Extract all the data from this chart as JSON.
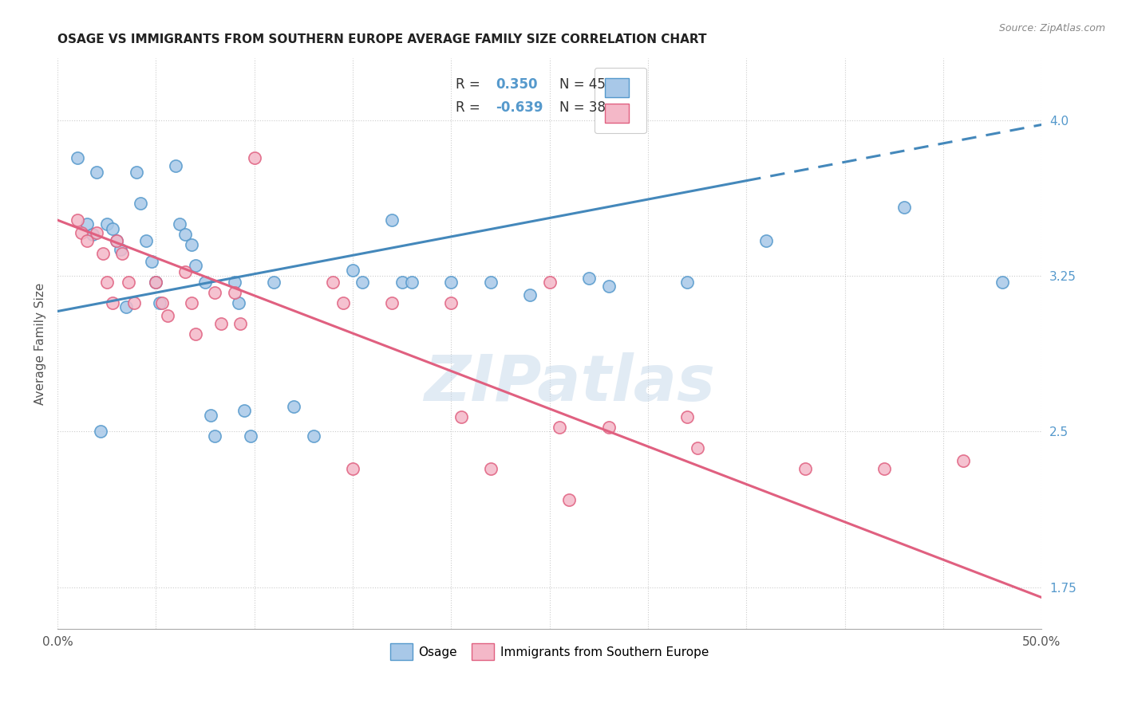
{
  "title": "OSAGE VS IMMIGRANTS FROM SOUTHERN EUROPE AVERAGE FAMILY SIZE CORRELATION CHART",
  "source": "Source: ZipAtlas.com",
  "ylabel": "Average Family Size",
  "right_yticks": [
    1.75,
    2.5,
    3.25,
    4.0
  ],
  "legend_blue_r": "0.350",
  "legend_blue_n": "45",
  "legend_pink_r": "-0.639",
  "legend_pink_n": "38",
  "legend_label_blue": "Osage",
  "legend_label_pink": "Immigrants from Southern Europe",
  "blue_color": "#a8c8e8",
  "pink_color": "#f4b8c8",
  "blue_edge_color": "#5599cc",
  "pink_edge_color": "#e06080",
  "blue_line_color": "#4488bb",
  "pink_line_color": "#e06080",
  "watermark": "ZIPatlas",
  "blue_scatter": [
    [
      1.0,
      3.82
    ],
    [
      2.0,
      3.75
    ],
    [
      1.5,
      3.5
    ],
    [
      1.8,
      3.45
    ],
    [
      2.5,
      3.5
    ],
    [
      2.8,
      3.48
    ],
    [
      3.0,
      3.42
    ],
    [
      3.2,
      3.38
    ],
    [
      3.5,
      3.1
    ],
    [
      2.2,
      2.5
    ],
    [
      4.0,
      3.75
    ],
    [
      4.2,
      3.6
    ],
    [
      4.5,
      3.42
    ],
    [
      4.8,
      3.32
    ],
    [
      5.0,
      3.22
    ],
    [
      5.2,
      3.12
    ],
    [
      6.0,
      3.78
    ],
    [
      6.2,
      3.5
    ],
    [
      6.5,
      3.45
    ],
    [
      6.8,
      3.4
    ],
    [
      7.0,
      3.3
    ],
    [
      7.5,
      3.22
    ],
    [
      7.8,
      2.58
    ],
    [
      8.0,
      2.48
    ],
    [
      9.0,
      3.22
    ],
    [
      9.2,
      3.12
    ],
    [
      9.5,
      2.6
    ],
    [
      9.8,
      2.48
    ],
    [
      11.0,
      3.22
    ],
    [
      12.0,
      2.62
    ],
    [
      13.0,
      2.48
    ],
    [
      15.0,
      3.28
    ],
    [
      15.5,
      3.22
    ],
    [
      17.0,
      3.52
    ],
    [
      17.5,
      3.22
    ],
    [
      18.0,
      3.22
    ],
    [
      20.0,
      3.22
    ],
    [
      22.0,
      3.22
    ],
    [
      24.0,
      3.16
    ],
    [
      27.0,
      3.24
    ],
    [
      32.0,
      3.22
    ],
    [
      36.0,
      3.42
    ],
    [
      48.0,
      3.22
    ],
    [
      28.0,
      3.2
    ],
    [
      43.0,
      3.58
    ]
  ],
  "pink_scatter": [
    [
      1.0,
      3.52
    ],
    [
      1.2,
      3.46
    ],
    [
      1.5,
      3.42
    ],
    [
      2.0,
      3.46
    ],
    [
      2.3,
      3.36
    ],
    [
      2.5,
      3.22
    ],
    [
      2.8,
      3.12
    ],
    [
      3.0,
      3.42
    ],
    [
      3.3,
      3.36
    ],
    [
      3.6,
      3.22
    ],
    [
      3.9,
      3.12
    ],
    [
      5.0,
      3.22
    ],
    [
      5.3,
      3.12
    ],
    [
      5.6,
      3.06
    ],
    [
      6.5,
      3.27
    ],
    [
      6.8,
      3.12
    ],
    [
      7.0,
      2.97
    ],
    [
      8.0,
      3.17
    ],
    [
      8.3,
      3.02
    ],
    [
      9.0,
      3.17
    ],
    [
      9.3,
      3.02
    ],
    [
      10.0,
      3.82
    ],
    [
      14.0,
      3.22
    ],
    [
      14.5,
      3.12
    ],
    [
      17.0,
      3.12
    ],
    [
      20.0,
      3.12
    ],
    [
      20.5,
      2.57
    ],
    [
      25.0,
      3.22
    ],
    [
      25.5,
      2.52
    ],
    [
      28.0,
      2.52
    ],
    [
      32.0,
      2.57
    ],
    [
      32.5,
      2.42
    ],
    [
      38.0,
      2.32
    ],
    [
      42.0,
      2.32
    ],
    [
      22.0,
      2.32
    ],
    [
      15.0,
      2.32
    ],
    [
      26.0,
      2.17
    ],
    [
      46.0,
      2.36
    ]
  ],
  "blue_line": [
    0.0,
    50.0,
    3.08,
    3.98
  ],
  "pink_line": [
    0.0,
    50.0,
    3.52,
    1.7
  ],
  "blue_dash_start": 35.0,
  "xlim": [
    0.0,
    50.0
  ],
  "ylim_bottom": 1.55,
  "ylim_top": 4.3,
  "xticks": [
    0.0,
    5.0,
    10.0,
    15.0,
    20.0,
    25.0,
    30.0,
    35.0,
    40.0,
    45.0,
    50.0
  ],
  "xtick_labels": [
    "0.0%",
    "",
    "",
    "",
    "",
    "",
    "",
    "",
    "",
    "",
    "50.0%"
  ],
  "background_color": "#ffffff",
  "grid_color": "#cccccc",
  "title_color": "#222222",
  "source_color": "#888888",
  "right_axis_color": "#5599cc",
  "legend_r_color": "#5599cc"
}
